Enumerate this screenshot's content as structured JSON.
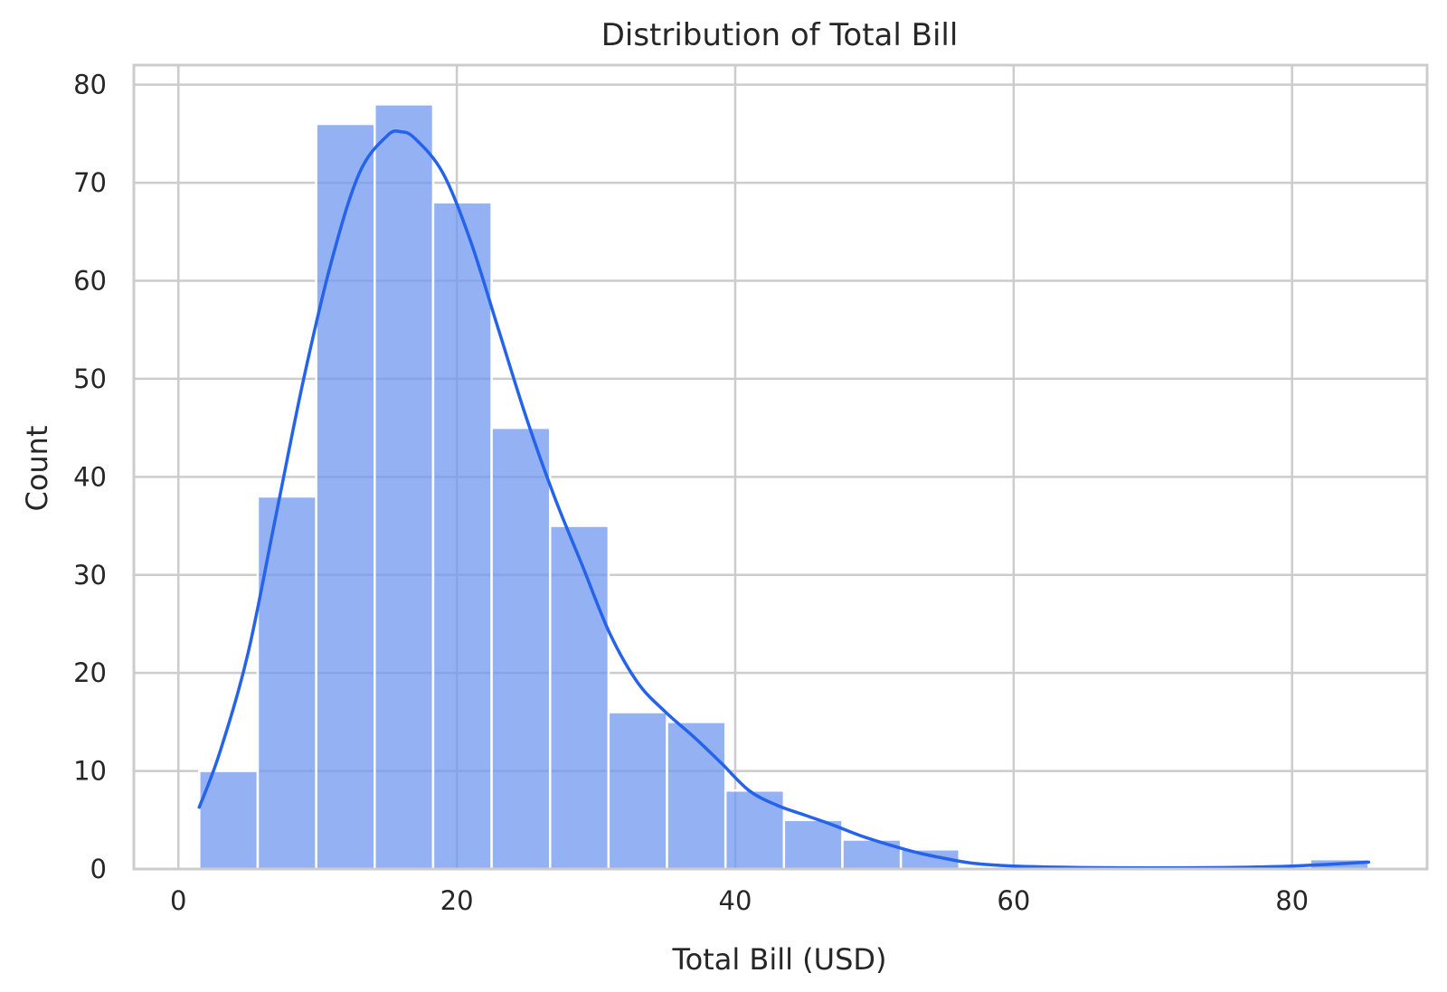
{
  "chart_data": {
    "type": "bar",
    "subtype": "histogram-with-kde",
    "title": "Distribution of Total Bill",
    "xlabel": "Total Bill (USD)",
    "ylabel": "Count",
    "xlim": [
      -3.2,
      89.7
    ],
    "ylim": [
      0,
      82
    ],
    "xticks": [
      0,
      20,
      40,
      60,
      80
    ],
    "yticks": [
      0,
      10,
      20,
      30,
      40,
      50,
      60,
      70,
      80
    ],
    "grid": true,
    "bins": [
      {
        "x0": 1.5,
        "x1": 5.7,
        "count": 10
      },
      {
        "x0": 5.7,
        "x1": 9.9,
        "count": 38
      },
      {
        "x0": 9.9,
        "x1": 14.1,
        "count": 76
      },
      {
        "x0": 14.1,
        "x1": 18.3,
        "count": 78
      },
      {
        "x0": 18.3,
        "x1": 22.5,
        "count": 68
      },
      {
        "x0": 22.5,
        "x1": 26.7,
        "count": 45
      },
      {
        "x0": 26.7,
        "x1": 30.9,
        "count": 35
      },
      {
        "x0": 30.9,
        "x1": 35.1,
        "count": 16
      },
      {
        "x0": 35.1,
        "x1": 39.3,
        "count": 15
      },
      {
        "x0": 39.3,
        "x1": 43.5,
        "count": 8
      },
      {
        "x0": 43.5,
        "x1": 47.7,
        "count": 5
      },
      {
        "x0": 47.7,
        "x1": 51.9,
        "count": 3
      },
      {
        "x0": 51.9,
        "x1": 56.1,
        "count": 2
      },
      {
        "x0": 81.3,
        "x1": 85.5,
        "count": 1
      }
    ],
    "kde": {
      "x": [
        1.5,
        3,
        5,
        7,
        9,
        11,
        13,
        15,
        16,
        17,
        19,
        21,
        23,
        25,
        27,
        29,
        31,
        33,
        35,
        37,
        39,
        41,
        43,
        45,
        47,
        49,
        51,
        53,
        55,
        57,
        60,
        65,
        70,
        75,
        80,
        85.5
      ],
      "y": [
        6.3,
        12,
        22,
        36,
        50,
        62,
        71,
        74.8,
        75.2,
        74.5,
        71,
        64,
        55,
        46,
        38,
        31,
        24,
        19,
        16,
        13.5,
        10.8,
        8,
        6.5,
        5.5,
        4.5,
        3.4,
        2.5,
        1.7,
        1.1,
        0.6,
        0.3,
        0.15,
        0.12,
        0.15,
        0.3,
        0.7
      ]
    },
    "colors": {
      "bar": "#6f97ef",
      "kde": "#2563eb",
      "grid": "#cccccc"
    }
  }
}
